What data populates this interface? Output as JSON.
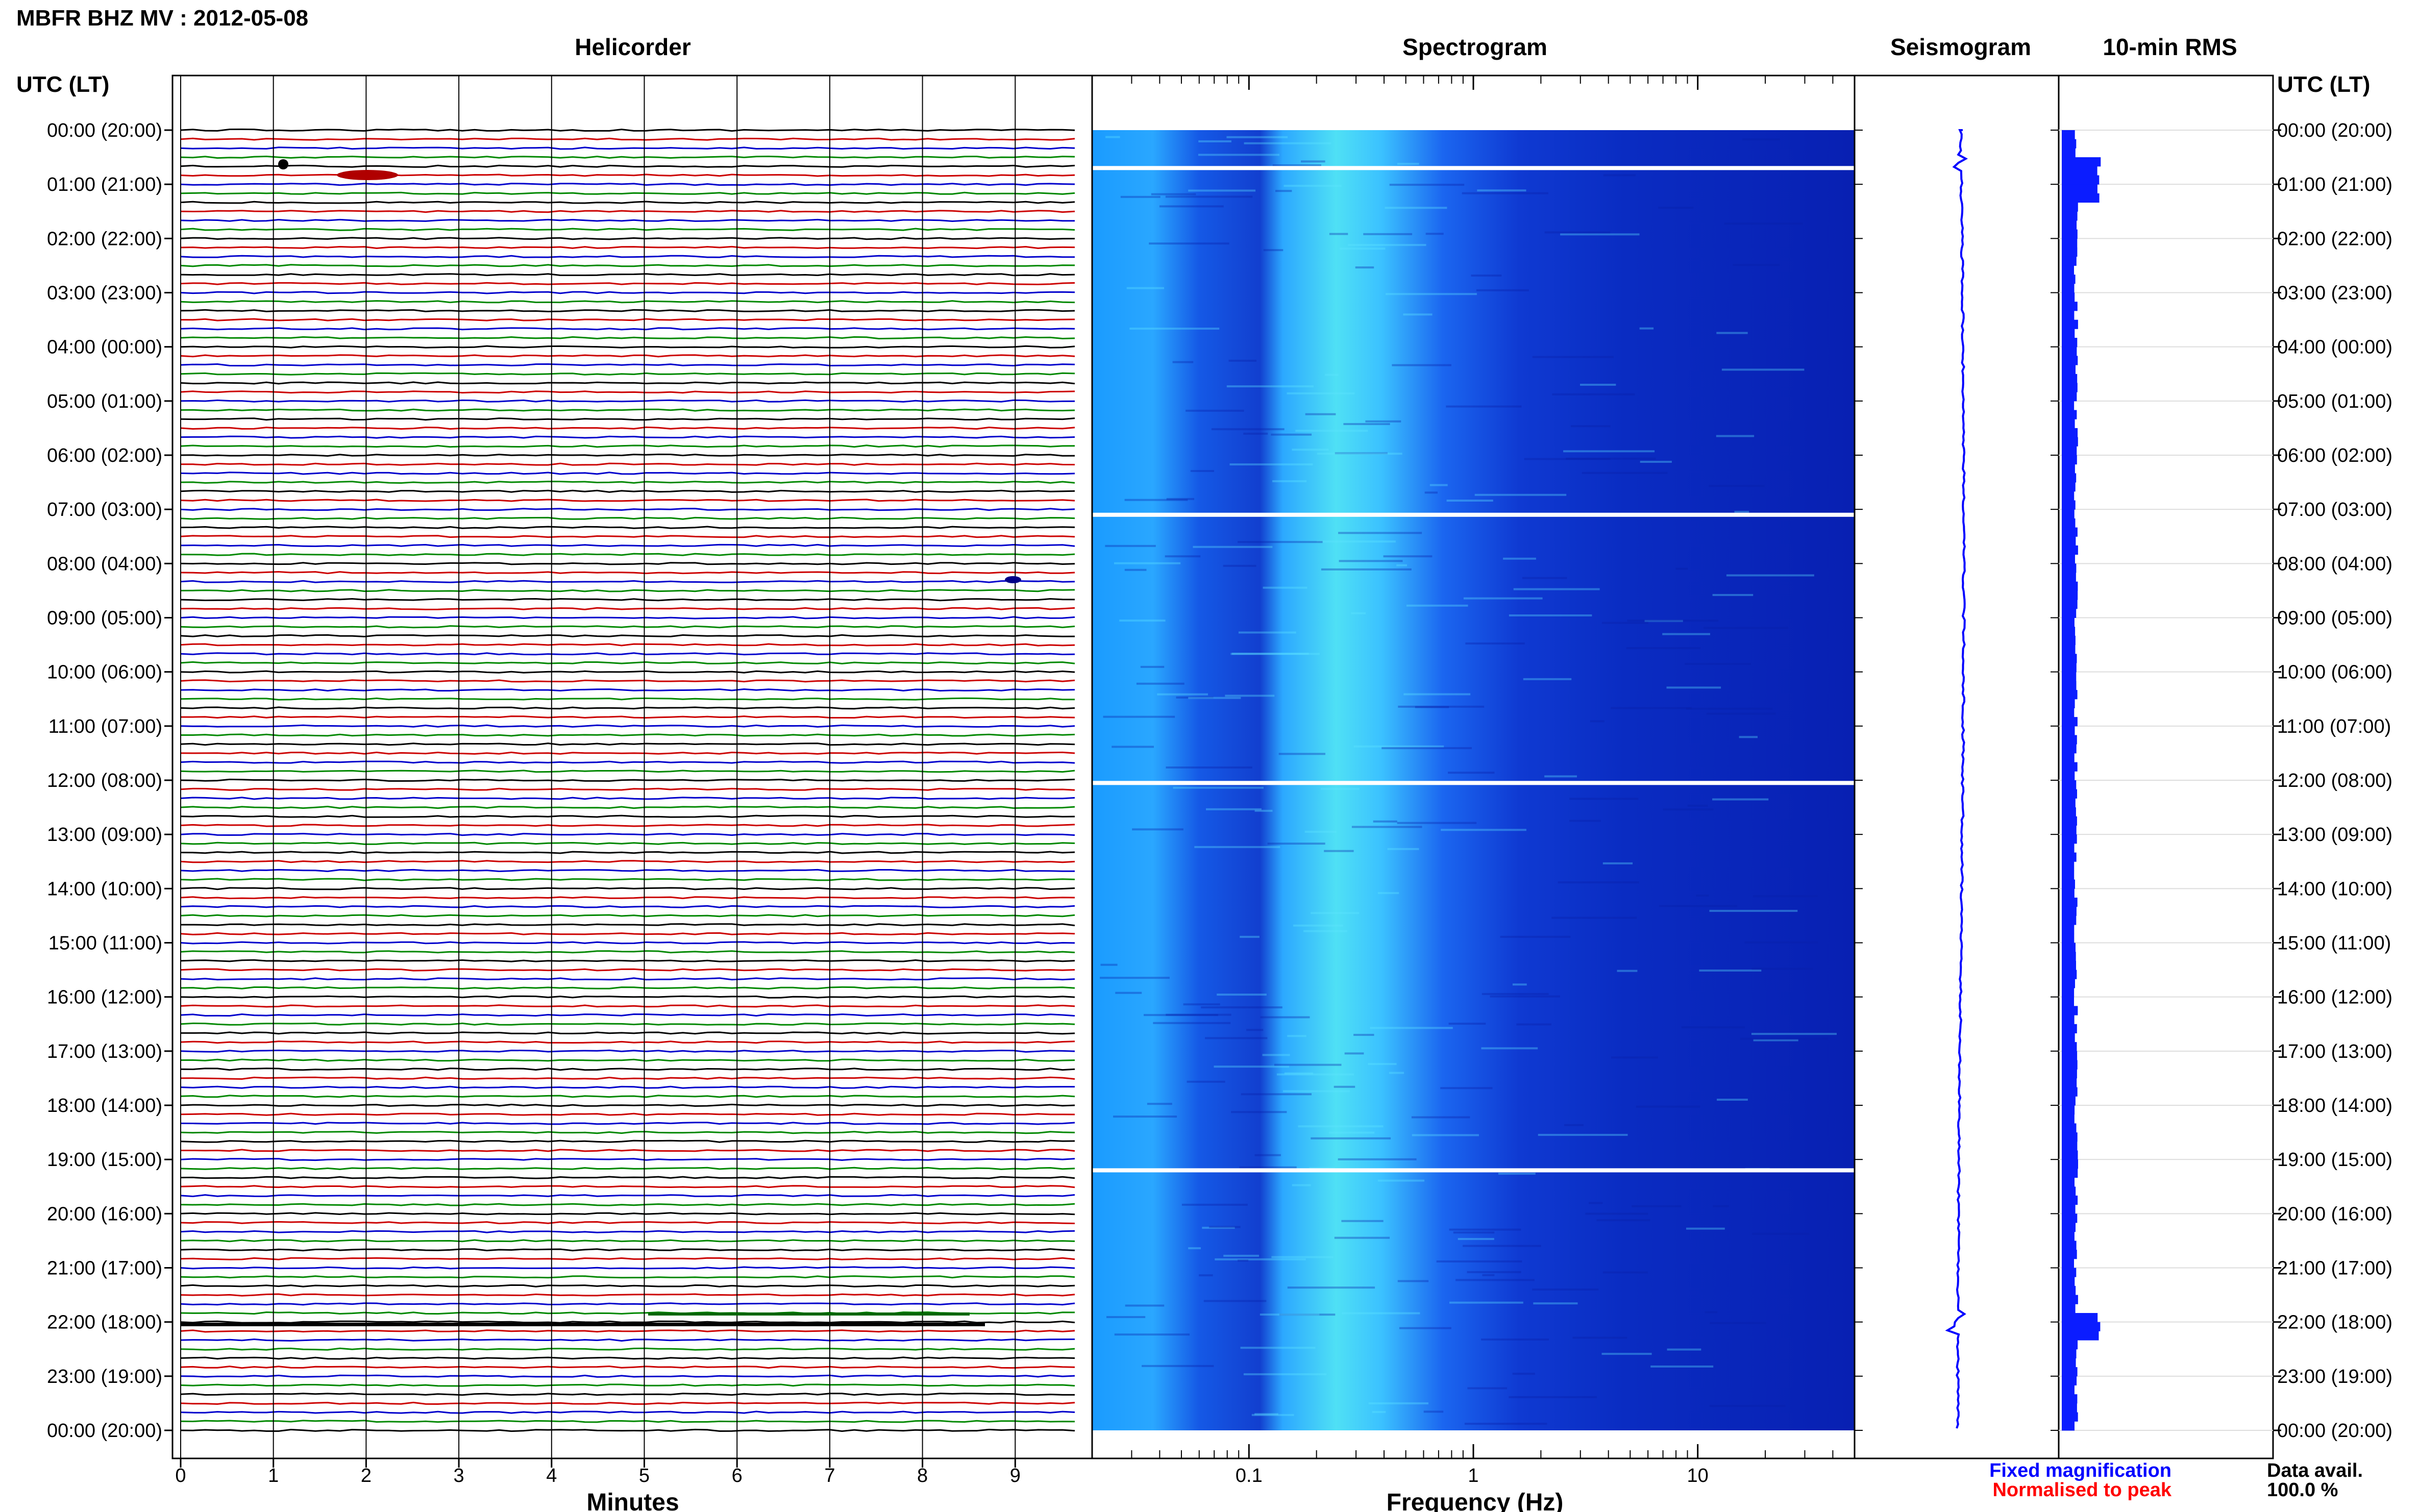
{
  "header": {
    "title": "MBFR BHZ MV : 2012-05-08"
  },
  "panels": {
    "helicorder": "Helicorder",
    "spectrogram": "Spectrogram",
    "seismogram": "Seismogram",
    "rms": "10-min RMS"
  },
  "axes": {
    "left_label": "UTC (LT)",
    "right_label": "UTC (LT)",
    "minutes_label": "Minutes",
    "frequency_label": "Frequency (Hz)",
    "minute_ticks": [
      "0",
      "1",
      "2",
      "3",
      "4",
      "5",
      "6",
      "7",
      "8",
      "9"
    ],
    "frequency_ticks": [
      "0.1",
      "1",
      "10"
    ]
  },
  "legend": {
    "fixed": "Fixed magnification",
    "normalised": "Normalised to peak",
    "fixed_color": "#0000ff",
    "normalised_color": "#ff0000",
    "data_avail_label": "Data avail.",
    "data_avail_value": "100.0 %"
  },
  "chart_data": {
    "type": "heatmap",
    "time_labels": [
      "00:00 (20:00)",
      "01:00 (21:00)",
      "02:00 (22:00)",
      "03:00 (23:00)",
      "04:00 (00:00)",
      "05:00 (01:00)",
      "06:00 (02:00)",
      "07:00 (03:00)",
      "08:00 (04:00)",
      "09:00 (05:00)",
      "10:00 (06:00)",
      "11:00 (07:00)",
      "12:00 (08:00)",
      "13:00 (09:00)",
      "14:00 (10:00)",
      "15:00 (11:00)",
      "16:00 (12:00)",
      "17:00 (13:00)",
      "18:00 (14:00)",
      "19:00 (15:00)",
      "20:00 (16:00)",
      "21:00 (17:00)",
      "22:00 (18:00)",
      "23:00 (19:00)",
      "00:00 (20:00)"
    ],
    "helicorder": {
      "minutes_range": [
        0,
        10
      ],
      "trace_colors": [
        "#000000",
        "#cc0000",
        "#0000cc",
        "#008800"
      ],
      "lines_per_hour": 6
    },
    "spectrogram": {
      "freq_range_hz": [
        0.02,
        50
      ],
      "scale": "log",
      "data_gaps_utc_hours": [
        0.7,
        7.1,
        12.05,
        19.2
      ]
    },
    "rms_events_utc_hours": [
      0.6,
      1.0,
      22.0
    ]
  }
}
